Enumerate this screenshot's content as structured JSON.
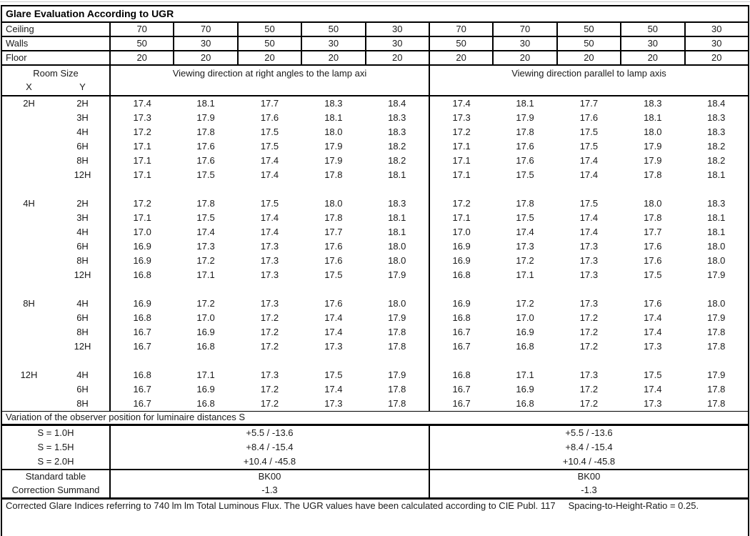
{
  "title": "Glare Evaluation According to UGR",
  "surfaces": [
    {
      "label": "Ceiling",
      "values": [
        "70",
        "70",
        "50",
        "50",
        "30",
        "70",
        "70",
        "50",
        "50",
        "30"
      ]
    },
    {
      "label": "Walls",
      "values": [
        "50",
        "30",
        "50",
        "30",
        "30",
        "50",
        "30",
        "50",
        "30",
        "30"
      ]
    },
    {
      "label": "Floor",
      "values": [
        "20",
        "20",
        "20",
        "20",
        "20",
        "20",
        "20",
        "20",
        "20",
        "20"
      ]
    }
  ],
  "header": {
    "room_size": "Room Size",
    "x": "X",
    "y": "Y",
    "left_direction": "Viewing direction at right angles to the lamp axi",
    "right_direction": "Viewing direction parallel to lamp axis"
  },
  "ugr_table": {
    "blocks": [
      {
        "x": "2H",
        "rows": [
          {
            "y": "2H",
            "values": [
              "17.4",
              "18.1",
              "17.7",
              "18.3",
              "18.4",
              "17.4",
              "18.1",
              "17.7",
              "18.3",
              "18.4"
            ]
          },
          {
            "y": "3H",
            "values": [
              "17.3",
              "17.9",
              "17.6",
              "18.1",
              "18.3",
              "17.3",
              "17.9",
              "17.6",
              "18.1",
              "18.3"
            ]
          },
          {
            "y": "4H",
            "values": [
              "17.2",
              "17.8",
              "17.5",
              "18.0",
              "18.3",
              "17.2",
              "17.8",
              "17.5",
              "18.0",
              "18.3"
            ]
          },
          {
            "y": "6H",
            "values": [
              "17.1",
              "17.6",
              "17.5",
              "17.9",
              "18.2",
              "17.1",
              "17.6",
              "17.5",
              "17.9",
              "18.2"
            ]
          },
          {
            "y": "8H",
            "values": [
              "17.1",
              "17.6",
              "17.4",
              "17.9",
              "18.2",
              "17.1",
              "17.6",
              "17.4",
              "17.9",
              "18.2"
            ]
          },
          {
            "y": "12H",
            "values": [
              "17.1",
              "17.5",
              "17.4",
              "17.8",
              "18.1",
              "17.1",
              "17.5",
              "17.4",
              "17.8",
              "18.1"
            ]
          }
        ]
      },
      {
        "x": "4H",
        "rows": [
          {
            "y": "2H",
            "values": [
              "17.2",
              "17.8",
              "17.5",
              "18.0",
              "18.3",
              "17.2",
              "17.8",
              "17.5",
              "18.0",
              "18.3"
            ]
          },
          {
            "y": "3H",
            "values": [
              "17.1",
              "17.5",
              "17.4",
              "17.8",
              "18.1",
              "17.1",
              "17.5",
              "17.4",
              "17.8",
              "18.1"
            ]
          },
          {
            "y": "4H",
            "values": [
              "17.0",
              "17.4",
              "17.4",
              "17.7",
              "18.1",
              "17.0",
              "17.4",
              "17.4",
              "17.7",
              "18.1"
            ]
          },
          {
            "y": "6H",
            "values": [
              "16.9",
              "17.3",
              "17.3",
              "17.6",
              "18.0",
              "16.9",
              "17.3",
              "17.3",
              "17.6",
              "18.0"
            ]
          },
          {
            "y": "8H",
            "values": [
              "16.9",
              "17.2",
              "17.3",
              "17.6",
              "18.0",
              "16.9",
              "17.2",
              "17.3",
              "17.6",
              "18.0"
            ]
          },
          {
            "y": "12H",
            "values": [
              "16.8",
              "17.1",
              "17.3",
              "17.5",
              "17.9",
              "16.8",
              "17.1",
              "17.3",
              "17.5",
              "17.9"
            ]
          }
        ]
      },
      {
        "x": "8H",
        "rows": [
          {
            "y": "4H",
            "values": [
              "16.9",
              "17.2",
              "17.3",
              "17.6",
              "18.0",
              "16.9",
              "17.2",
              "17.3",
              "17.6",
              "18.0"
            ]
          },
          {
            "y": "6H",
            "values": [
              "16.8",
              "17.0",
              "17.2",
              "17.4",
              "17.9",
              "16.8",
              "17.0",
              "17.2",
              "17.4",
              "17.9"
            ]
          },
          {
            "y": "8H",
            "values": [
              "16.7",
              "16.9",
              "17.2",
              "17.4",
              "17.8",
              "16.7",
              "16.9",
              "17.2",
              "17.4",
              "17.8"
            ]
          },
          {
            "y": "12H",
            "values": [
              "16.7",
              "16.8",
              "17.2",
              "17.3",
              "17.8",
              "16.7",
              "16.8",
              "17.2",
              "17.3",
              "17.8"
            ]
          }
        ]
      },
      {
        "x": "12H",
        "rows": [
          {
            "y": "4H",
            "values": [
              "16.8",
              "17.1",
              "17.3",
              "17.5",
              "17.9",
              "16.8",
              "17.1",
              "17.3",
              "17.5",
              "17.9"
            ]
          },
          {
            "y": "6H",
            "values": [
              "16.7",
              "16.9",
              "17.2",
              "17.4",
              "17.8",
              "16.7",
              "16.9",
              "17.2",
              "17.4",
              "17.8"
            ]
          },
          {
            "y": "8H",
            "values": [
              "16.7",
              "16.8",
              "17.2",
              "17.3",
              "17.8",
              "16.7",
              "16.8",
              "17.2",
              "17.3",
              "17.8"
            ]
          }
        ]
      }
    ]
  },
  "variation": {
    "heading": "Variation of the observer position for luminaire distances S",
    "rows": [
      {
        "label": "S = 1.0H",
        "left": "+5.5 / -13.6",
        "right": "+5.5 / -13.6"
      },
      {
        "label": "S = 1.5H",
        "left": "+8.4 / -15.4",
        "right": "+8.4 / -15.4"
      },
      {
        "label": "S = 2.0H",
        "left": "+10.4 / -45.8",
        "right": "+10.4 / -45.8"
      }
    ]
  },
  "summary_rows": [
    {
      "label": "Standard table",
      "left": "BK00",
      "right": "BK00"
    },
    {
      "label": "Correction Summand",
      "left": "-1.3",
      "right": "-1.3"
    }
  ],
  "footer": "Corrected Glare Indices referring to 740 lm lm Total Luminous Flux. The UGR values have been calculated according to CIE Publ. 117     Spacing-to-Height-Ratio = 0.25."
}
